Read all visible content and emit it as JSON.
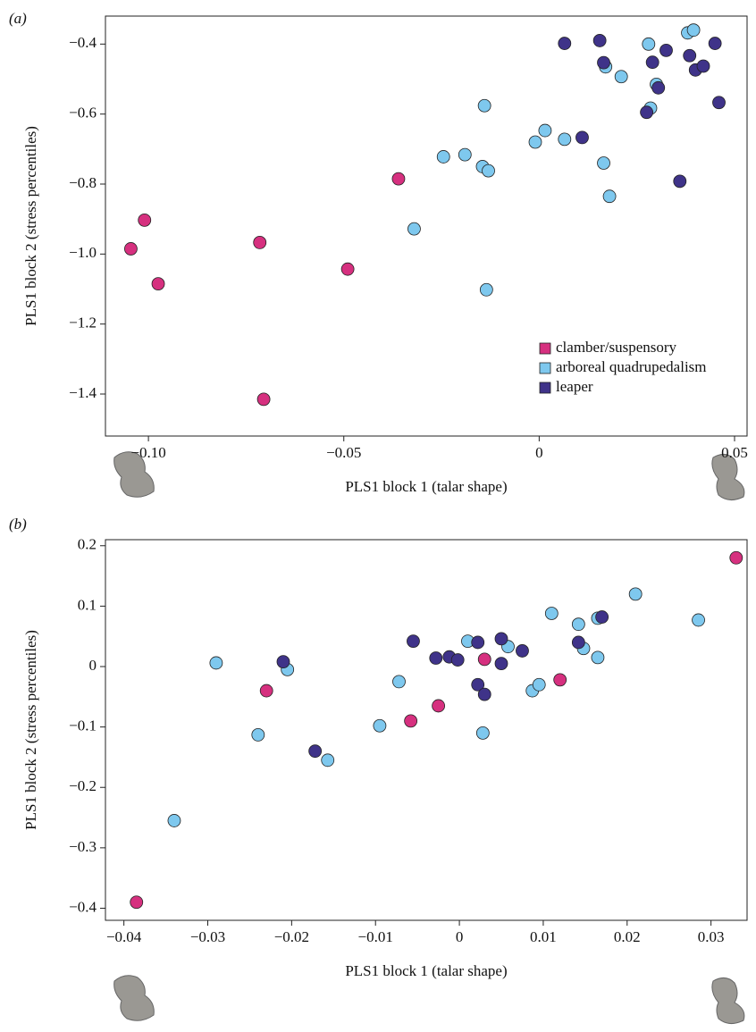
{
  "chart_data": [
    {
      "type": "scatter",
      "panel_label": "(a)",
      "x_label": "PLS1 block 1 (talar shape)",
      "y_label": "PLS1 block 2 (stress percentiles)",
      "xlim": [
        -0.111,
        0.0532
      ],
      "ylim": [
        -1.52,
        -0.32
      ],
      "xticks": [
        {
          "value": -0.1,
          "label": "−0.10"
        },
        {
          "value": -0.05,
          "label": "−0.05"
        },
        0,
        0.05
      ],
      "yticks": [
        {
          "value": -1.4,
          "label": "−1.4"
        },
        {
          "value": -1.2,
          "label": "−1.2"
        },
        {
          "value": -1.0,
          "label": "−1.0"
        },
        {
          "value": -0.8,
          "label": "−0.8"
        },
        {
          "value": -0.6,
          "label": "−0.6"
        },
        {
          "value": -0.4,
          "label": "−0.4"
        }
      ],
      "legend": "lower right",
      "series": [
        {
          "name": "clamber/suspensory",
          "color": "#d6307f",
          "x": [
            -0.1045,
            -0.101,
            -0.0975,
            -0.0715,
            -0.0705,
            -0.049,
            -0.036
          ],
          "values": [
            -0.985,
            -0.903,
            -1.085,
            -0.967,
            -1.415,
            -1.043,
            -0.785
          ]
        },
        {
          "name": "arboreal quadrupedalism",
          "color": "#7ec8ee",
          "x": [
            -0.032,
            -0.0245,
            -0.019,
            -0.0145,
            -0.013,
            -0.014,
            -0.0135,
            -0.001,
            0.0015,
            0.0065,
            0.0165,
            0.017,
            0.018,
            0.021,
            0.028,
            0.0285,
            0.03,
            0.038,
            0.0395
          ],
          "values": [
            -0.928,
            -0.722,
            -0.716,
            -0.75,
            -0.762,
            -0.576,
            -1.102,
            -0.68,
            -0.647,
            -0.672,
            -0.74,
            -0.465,
            -0.835,
            -0.493,
            -0.4,
            -0.583,
            -0.515,
            -0.368,
            -0.36
          ]
        },
        {
          "name": "leaper",
          "color": "#3f3389",
          "x": [
            0.0065,
            0.0155,
            0.0165,
            0.0275,
            0.029,
            0.0305,
            0.0325,
            0.011,
            0.036,
            0.0385,
            0.04,
            0.042,
            0.045,
            0.046
          ],
          "values": [
            -0.398,
            -0.39,
            -0.453,
            -0.595,
            -0.452,
            -0.525,
            -0.418,
            -0.667,
            -0.792,
            -0.433,
            -0.474,
            -0.463,
            -0.398,
            -0.567
          ]
        }
      ]
    },
    {
      "type": "scatter",
      "panel_label": "(b)",
      "x_label": "PLS1 block 1 (talar shape)",
      "y_label": "PLS1 block 2 (stress percentiles)",
      "xlim": [
        -0.0422,
        0.0343
      ],
      "ylim": [
        -0.42,
        0.21
      ],
      "xticks": [
        {
          "value": -0.04,
          "label": "−0.04"
        },
        {
          "value": -0.03,
          "label": "−0.03"
        },
        {
          "value": -0.02,
          "label": "−0.02"
        },
        {
          "value": -0.01,
          "label": "−0.01"
        },
        0,
        0.01,
        0.02,
        0.03
      ],
      "yticks": [
        {
          "value": -0.4,
          "label": "−0.4"
        },
        {
          "value": -0.3,
          "label": "−0.3"
        },
        {
          "value": -0.2,
          "label": "−0.2"
        },
        {
          "value": -0.1,
          "label": "−0.1"
        },
        0,
        0.1,
        0.2
      ],
      "series": [
        {
          "name": "clamber/suspensory",
          "color": "#d6307f",
          "x": [
            0.033,
            -0.023,
            -0.0058,
            -0.0025,
            0.003,
            0.012,
            -0.0385
          ],
          "values": [
            0.18,
            -0.04,
            -0.09,
            -0.065,
            0.012,
            -0.022,
            -0.39
          ]
        },
        {
          "name": "arboreal quadrupedalism",
          "color": "#7ec8ee",
          "x": [
            -0.029,
            -0.0205,
            -0.024,
            -0.0157,
            -0.034,
            -0.0095,
            -0.0072,
            0.001,
            0.0028,
            0.0058,
            0.0087,
            0.0095,
            0.011,
            0.0142,
            0.0148,
            0.0165,
            0.0165,
            0.021,
            0.0285
          ],
          "values": [
            0.006,
            -0.005,
            -0.113,
            -0.155,
            -0.255,
            -0.098,
            -0.025,
            0.042,
            -0.11,
            0.033,
            -0.04,
            -0.03,
            0.088,
            0.07,
            0.03,
            0.015,
            0.08,
            0.12,
            0.077
          ]
        },
        {
          "name": "leaper",
          "color": "#3f3389",
          "x": [
            -0.021,
            -0.0172,
            -0.0055,
            -0.0028,
            -0.0012,
            -0.0002,
            0.0022,
            0.0022,
            0.003,
            0.005,
            0.005,
            0.0075,
            0.0142,
            0.017
          ],
          "values": [
            0.008,
            -0.14,
            0.042,
            0.014,
            0.016,
            0.011,
            0.04,
            -0.03,
            -0.046,
            0.005,
            0.046,
            0.026,
            0.04,
            0.082
          ]
        }
      ]
    }
  ]
}
